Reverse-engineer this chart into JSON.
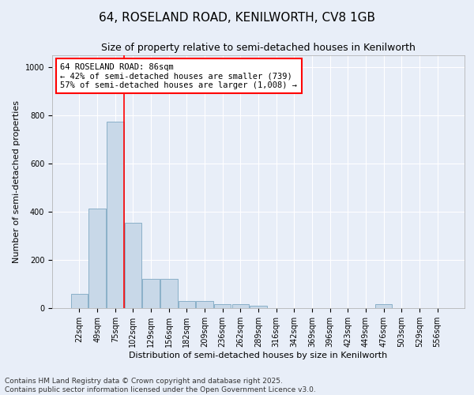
{
  "title": "64, ROSELAND ROAD, KENILWORTH, CV8 1GB",
  "subtitle": "Size of property relative to semi-detached houses in Kenilworth",
  "xlabel": "Distribution of semi-detached houses by size in Kenilworth",
  "ylabel": "Number of semi-detached properties",
  "categories": [
    "22sqm",
    "49sqm",
    "75sqm",
    "102sqm",
    "129sqm",
    "156sqm",
    "182sqm",
    "209sqm",
    "236sqm",
    "262sqm",
    "289sqm",
    "316sqm",
    "342sqm",
    "369sqm",
    "396sqm",
    "423sqm",
    "449sqm",
    "476sqm",
    "503sqm",
    "529sqm",
    "556sqm"
  ],
  "values": [
    60,
    415,
    775,
    355,
    120,
    120,
    30,
    30,
    18,
    18,
    10,
    0,
    0,
    0,
    0,
    0,
    0,
    18,
    0,
    0,
    0
  ],
  "bar_color": "#c8d8e8",
  "bar_edge_color": "#8ab0c8",
  "red_line_x": 2.5,
  "annotation_text": "64 ROSELAND ROAD: 86sqm\n← 42% of semi-detached houses are smaller (739)\n57% of semi-detached houses are larger (1,008) →",
  "annotation_box_color": "white",
  "annotation_box_edge_color": "red",
  "red_line_color": "red",
  "ylim": [
    0,
    1050
  ],
  "yticks": [
    0,
    200,
    400,
    600,
    800,
    1000
  ],
  "background_color": "#e8eef8",
  "grid_color": "white",
  "footnote": "Contains HM Land Registry data © Crown copyright and database right 2025.\nContains public sector information licensed under the Open Government Licence v3.0.",
  "title_fontsize": 11,
  "subtitle_fontsize": 9,
  "xlabel_fontsize": 8,
  "ylabel_fontsize": 8,
  "tick_fontsize": 7,
  "annotation_fontsize": 7.5,
  "footnote_fontsize": 6.5
}
